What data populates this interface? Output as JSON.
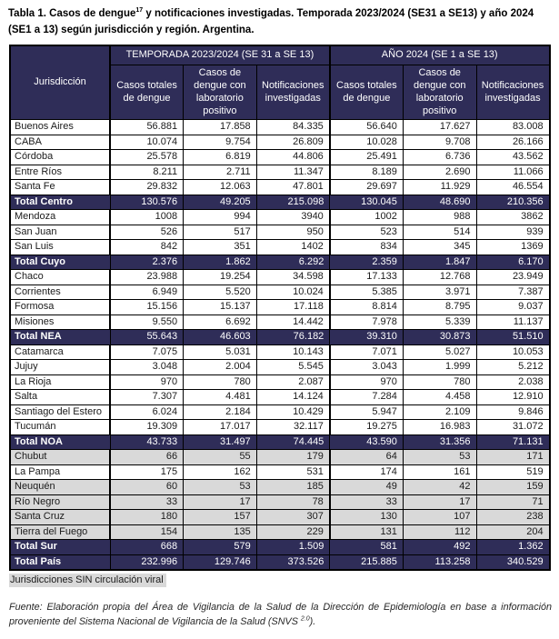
{
  "title": {
    "text_before_sup": "Tabla 1. Casos de dengue",
    "sup": "17",
    "text_after_sup": " y notificaciones investigadas. Temporada 2023/2024 (SE31 a SE13) y año 2024 (SE1 a 13) según jurisdicción y región. Argentina."
  },
  "colors": {
    "header_bg": "#2F2D58",
    "total_row_bg": "#2F2D58",
    "no_viral_circulation_bg": "#D9D9D9",
    "header_text": "#FFFFFF"
  },
  "table": {
    "corner_header": "Jurisdicción",
    "groups": [
      {
        "label": "TEMPORADA 2023/2024 (SE 31 a SE 13)"
      },
      {
        "label": "AÑO 2024 (SE 1 a SE 13)"
      }
    ],
    "sub_headers": [
      "Casos totales de dengue",
      "Casos de dengue con laboratorio positivo",
      "Notificaciones investigadas",
      "Casos totales de dengue",
      "Casos de dengue con laboratorio positivo",
      "Notificaciones investigadas"
    ],
    "rows": [
      {
        "label": "Buenos Aires",
        "type": "data",
        "values": [
          "56.881",
          "17.858",
          "84.335",
          "56.640",
          "17.627",
          "83.008"
        ]
      },
      {
        "label": "CABA",
        "type": "data",
        "values": [
          "10.074",
          "9.754",
          "26.809",
          "10.028",
          "9.708",
          "26.166"
        ]
      },
      {
        "label": "Córdoba",
        "type": "data",
        "values": [
          "25.578",
          "6.819",
          "44.806",
          "25.491",
          "6.736",
          "43.562"
        ]
      },
      {
        "label": "Entre Ríos",
        "type": "data",
        "values": [
          "8.211",
          "2.711",
          "11.347",
          "8.189",
          "2.690",
          "11.066"
        ]
      },
      {
        "label": "Santa Fe",
        "type": "data",
        "values": [
          "29.832",
          "12.063",
          "47.801",
          "29.697",
          "11.929",
          "46.554"
        ]
      },
      {
        "label": "Total Centro",
        "type": "total",
        "values": [
          "130.576",
          "49.205",
          "215.098",
          "130.045",
          "48.690",
          "210.356"
        ]
      },
      {
        "label": "Mendoza",
        "type": "data",
        "values": [
          "1008",
          "994",
          "3940",
          "1002",
          "988",
          "3862"
        ]
      },
      {
        "label": "San Juan",
        "type": "data",
        "values": [
          "526",
          "517",
          "950",
          "523",
          "514",
          "939"
        ]
      },
      {
        "label": "San Luis",
        "type": "data",
        "values": [
          "842",
          "351",
          "1402",
          "834",
          "345",
          "1369"
        ]
      },
      {
        "label": "Total Cuyo",
        "type": "total",
        "values": [
          "2.376",
          "1.862",
          "6.292",
          "2.359",
          "1.847",
          "6.170"
        ]
      },
      {
        "label": "Chaco",
        "type": "data",
        "values": [
          "23.988",
          "19.254",
          "34.598",
          "17.133",
          "12.768",
          "23.949"
        ]
      },
      {
        "label": "Corrientes",
        "type": "data",
        "values": [
          "6.949",
          "5.520",
          "10.024",
          "5.385",
          "3.971",
          "7.387"
        ]
      },
      {
        "label": "Formosa",
        "type": "data",
        "values": [
          "15.156",
          "15.137",
          "17.118",
          "8.814",
          "8.795",
          "9.037"
        ]
      },
      {
        "label": "Misiones",
        "type": "data",
        "values": [
          "9.550",
          "6.692",
          "14.442",
          "7.978",
          "5.339",
          "11.137"
        ]
      },
      {
        "label": "Total NEA",
        "type": "total",
        "values": [
          "55.643",
          "46.603",
          "76.182",
          "39.310",
          "30.873",
          "51.510"
        ]
      },
      {
        "label": "Catamarca",
        "type": "data",
        "values": [
          "7.075",
          "5.031",
          "10.143",
          "7.071",
          "5.027",
          "10.053"
        ]
      },
      {
        "label": "Jujuy",
        "type": "data",
        "values": [
          "3.048",
          "2.004",
          "5.545",
          "3.043",
          "1.999",
          "5.212"
        ]
      },
      {
        "label": "La Rioja",
        "type": "data",
        "values": [
          "970",
          "780",
          "2.087",
          "970",
          "780",
          "2.038"
        ]
      },
      {
        "label": "Salta",
        "type": "data",
        "values": [
          "7.307",
          "4.481",
          "14.124",
          "7.284",
          "4.458",
          "12.910"
        ]
      },
      {
        "label": "Santiago del Estero",
        "type": "data",
        "values": [
          "6.024",
          "2.184",
          "10.429",
          "5.947",
          "2.109",
          "9.846"
        ]
      },
      {
        "label": "Tucumán",
        "type": "data",
        "values": [
          "19.309",
          "17.017",
          "32.117",
          "19.275",
          "16.983",
          "31.072"
        ]
      },
      {
        "label": "Total NOA",
        "type": "total",
        "values": [
          "43.733",
          "31.497",
          "74.445",
          "43.590",
          "31.356",
          "71.131"
        ]
      },
      {
        "label": "Chubut",
        "type": "data",
        "no_viral_circulation": true,
        "values": [
          "66",
          "55",
          "179",
          "64",
          "53",
          "171"
        ]
      },
      {
        "label": "La Pampa",
        "type": "data",
        "values": [
          "175",
          "162",
          "531",
          "174",
          "161",
          "519"
        ]
      },
      {
        "label": "Neuquén",
        "type": "data",
        "no_viral_circulation": true,
        "values": [
          "60",
          "53",
          "185",
          "49",
          "42",
          "159"
        ]
      },
      {
        "label": "Río Negro",
        "type": "data",
        "no_viral_circulation": true,
        "values": [
          "33",
          "17",
          "78",
          "33",
          "17",
          "71"
        ]
      },
      {
        "label": "Santa Cruz",
        "type": "data",
        "no_viral_circulation": true,
        "values": [
          "180",
          "157",
          "307",
          "130",
          "107",
          "238"
        ]
      },
      {
        "label": "Tierra del Fuego",
        "type": "data",
        "no_viral_circulation": true,
        "values": [
          "154",
          "135",
          "229",
          "131",
          "112",
          "204"
        ]
      },
      {
        "label": "Total Sur",
        "type": "total",
        "values": [
          "668",
          "579",
          "1.509",
          "581",
          "492",
          "1.362"
        ]
      },
      {
        "label": "Total País",
        "type": "total",
        "values": [
          "232.996",
          "129.746",
          "373.526",
          "215.885",
          "113.258",
          "340.529"
        ]
      }
    ]
  },
  "legend": {
    "label": "Jurisdicciones SIN circulación viral",
    "swatch_color": "#D9D9D9"
  },
  "source": {
    "text_before_sup": "Fuente: Elaboración propia del Área de Vigilancia de la Salud de la Dirección de Epidemiología en base a información proveniente del Sistema Nacional de Vigilancia de la Salud (SNVS ",
    "sup": "2.0",
    "text_after_sup": ")."
  }
}
